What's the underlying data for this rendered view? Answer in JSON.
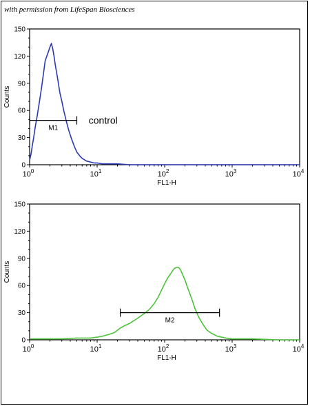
{
  "credit": "with permission from LifeSpan Biosciences",
  "chart_data": [
    {
      "type": "line",
      "x_scale": "log",
      "xlim": [
        1,
        10000
      ],
      "ylim": [
        0,
        150
      ],
      "xlabel": "FL1-H",
      "ylabel": "Counts",
      "x_ticks": [
        {
          "base": "10",
          "exp": "0"
        },
        {
          "base": "10",
          "exp": "1"
        },
        {
          "base": "10",
          "exp": "2"
        },
        {
          "base": "10",
          "exp": "3"
        },
        {
          "base": "10",
          "exp": "4"
        }
      ],
      "y_ticks": [
        0,
        30,
        60,
        90,
        120,
        150
      ],
      "color": "#2b3ab3",
      "series": [
        {
          "x": [
            1.0,
            1.05,
            1.1,
            1.15,
            1.2,
            1.3,
            1.4,
            1.5,
            1.6,
            1.7,
            1.8,
            1.9,
            2.0,
            2.1,
            2.2,
            2.3,
            2.4,
            2.6,
            2.8,
            3.0,
            3.2,
            3.5,
            3.8,
            4.2,
            4.6,
            5.0,
            5.5,
            6.0,
            7.0,
            8.0,
            9.0,
            10,
            12,
            15,
            20,
            30,
            50,
            100,
            300,
            1000,
            3000,
            10000
          ],
          "y": [
            5,
            12,
            22,
            30,
            40,
            55,
            70,
            85,
            100,
            115,
            120,
            125,
            130,
            134,
            128,
            120,
            110,
            95,
            80,
            70,
            60,
            48,
            38,
            28,
            20,
            14,
            10,
            7,
            4,
            3,
            2,
            2,
            1,
            1,
            1,
            0,
            0,
            0,
            0,
            0,
            0,
            0
          ]
        }
      ],
      "annotations": [
        {
          "type": "gate",
          "label": "M1",
          "x_start": 1.0,
          "x_end": 5.0,
          "y": 49
        },
        {
          "type": "text",
          "label": "control",
          "x": 7.5,
          "y": 49
        }
      ]
    },
    {
      "type": "line",
      "x_scale": "log",
      "xlim": [
        1,
        10000
      ],
      "ylim": [
        0,
        150
      ],
      "xlabel": "FL1-H",
      "ylabel": "Counts",
      "x_ticks": [
        {
          "base": "10",
          "exp": "0"
        },
        {
          "base": "10",
          "exp": "1"
        },
        {
          "base": "10",
          "exp": "2"
        },
        {
          "base": "10",
          "exp": "3"
        },
        {
          "base": "10",
          "exp": "4"
        }
      ],
      "y_ticks": [
        0,
        30,
        60,
        90,
        120,
        150
      ],
      "color": "#4bc23a",
      "series": [
        {
          "x": [
            1,
            3,
            5,
            8,
            10,
            12,
            15,
            18,
            22,
            26,
            30,
            40,
            50,
            60,
            70,
            80,
            90,
            100,
            110,
            120,
            130,
            140,
            150,
            160,
            170,
            180,
            200,
            220,
            250,
            280,
            320,
            370,
            420,
            500,
            600,
            800,
            1000,
            2000,
            5000,
            10000
          ],
          "y": [
            1,
            1,
            2,
            2,
            3,
            4,
            6,
            8,
            13,
            16,
            18,
            24,
            29,
            34,
            40,
            47,
            55,
            62,
            68,
            72,
            76,
            79,
            80,
            80,
            78,
            74,
            66,
            57,
            46,
            35,
            25,
            17,
            11,
            7,
            4,
            2,
            1,
            1,
            0,
            0
          ]
        }
      ],
      "annotations": [
        {
          "type": "gate",
          "label": "M2",
          "x_start": 22,
          "x_end": 650,
          "y": 30
        }
      ]
    }
  ]
}
